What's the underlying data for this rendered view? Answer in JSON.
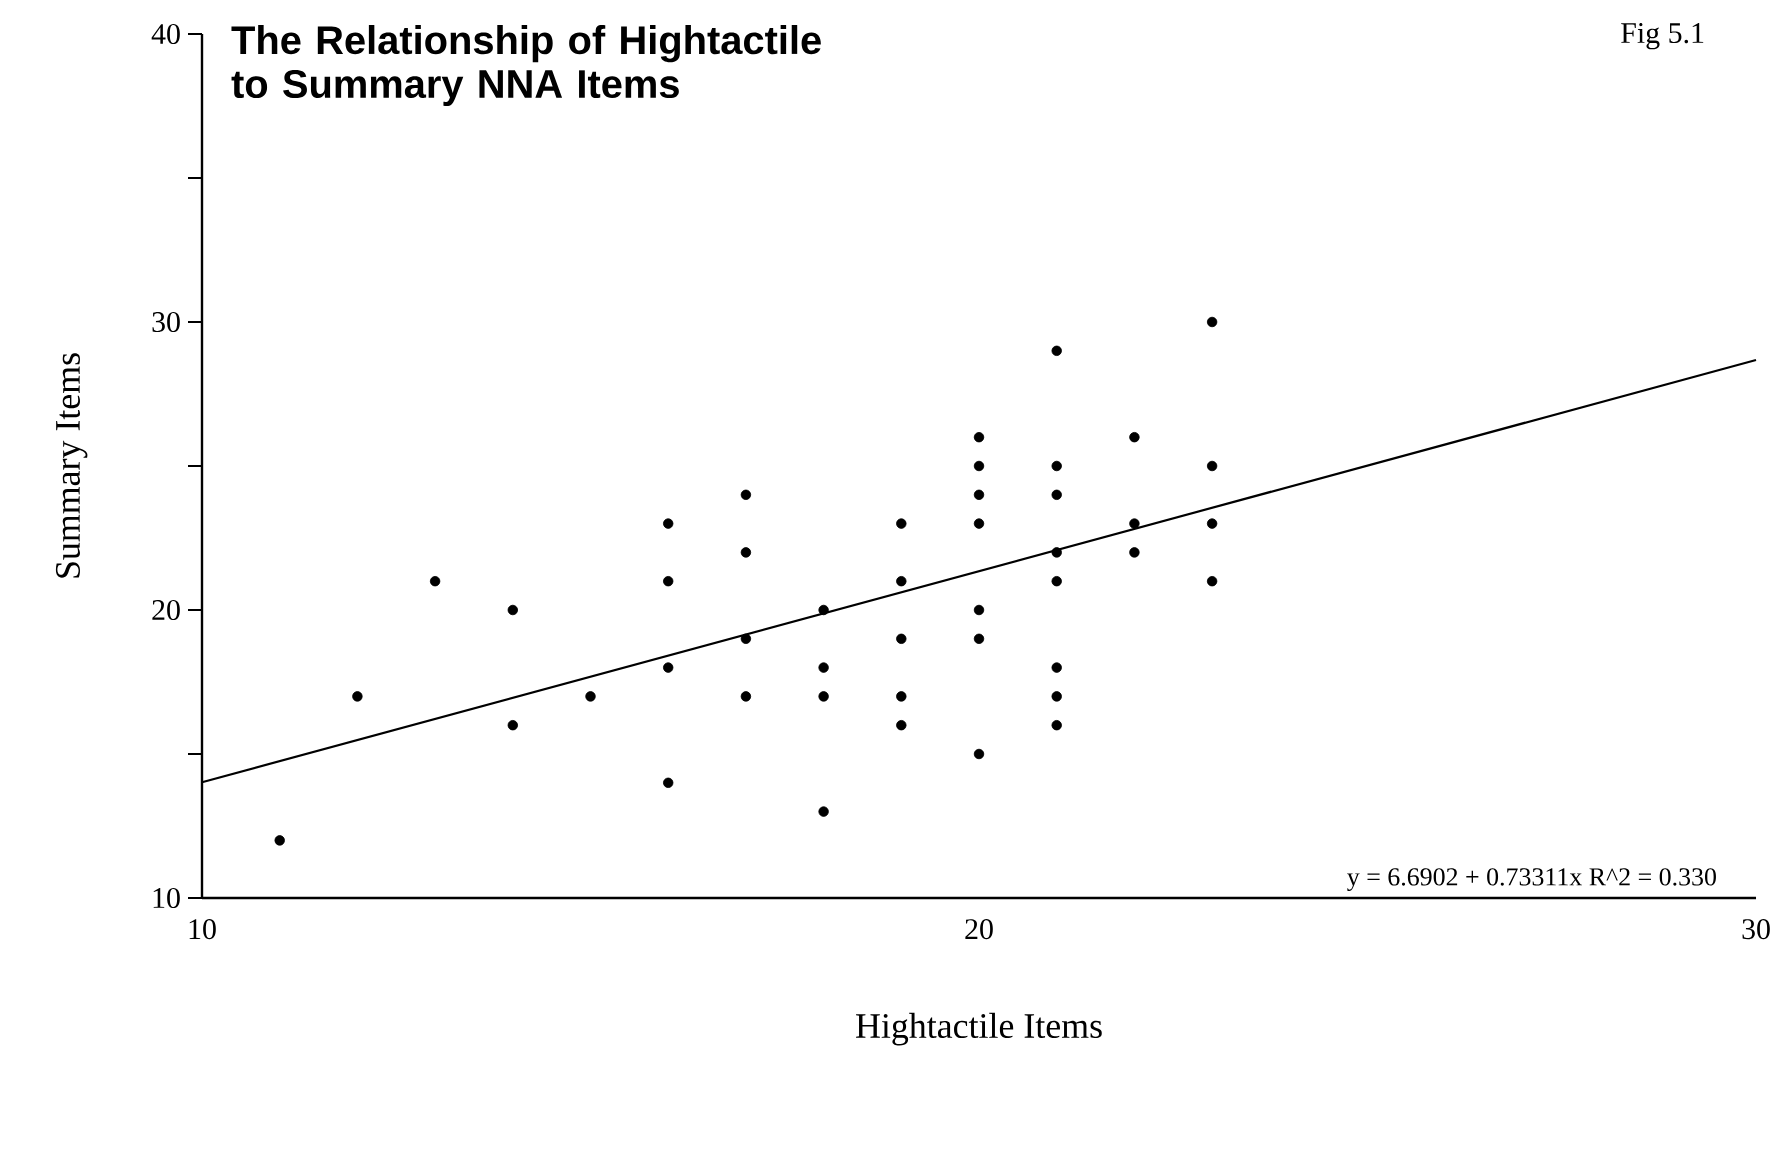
{
  "chart_data": {
    "type": "scatter",
    "title": "The Relationship of Hightactile to Summary NNA Items",
    "xlabel": "Hightactile Items",
    "ylabel": "Summary Items",
    "xlim": [
      10,
      30
    ],
    "xticks": [
      10,
      20,
      30
    ],
    "ylim": [
      10,
      40
    ],
    "yticks": [
      10,
      {
        "value": 15,
        "label": null
      },
      20,
      {
        "value": 25,
        "label": null
      },
      30,
      {
        "value": 35,
        "label": null
      },
      40
    ],
    "grid": false,
    "series": [
      {
        "type": "scatter",
        "marker": "circle",
        "color": "#000000",
        "x": [
          11,
          12,
          13,
          14,
          14,
          15,
          16,
          16,
          16,
          16,
          17,
          17,
          17,
          17,
          18,
          18,
          18,
          18,
          19,
          19,
          19,
          19,
          19,
          20,
          20,
          20,
          20,
          20,
          20,
          20,
          21,
          21,
          21,
          21,
          21,
          21,
          21,
          21,
          22,
          22,
          22,
          23,
          23,
          23,
          23
        ],
        "values": [
          12,
          17,
          21,
          20,
          16,
          17,
          23,
          21,
          18,
          14,
          24,
          22,
          19,
          17,
          20,
          18,
          17,
          13,
          23,
          21,
          19,
          17,
          16,
          26,
          25,
          24,
          23,
          20,
          19,
          15,
          29,
          25,
          24,
          22,
          21,
          18,
          17,
          16,
          26,
          23,
          22,
          30,
          25,
          23,
          21
        ]
      },
      {
        "type": "line",
        "marker": "none",
        "color": "#000000",
        "x": [
          10,
          30
        ],
        "values": [
          14.02,
          28.68
        ]
      }
    ],
    "annotations": [
      "y = 6.6902 + 0.73311x    R^2 = 0.330",
      "Fig 5.1"
    ]
  }
}
